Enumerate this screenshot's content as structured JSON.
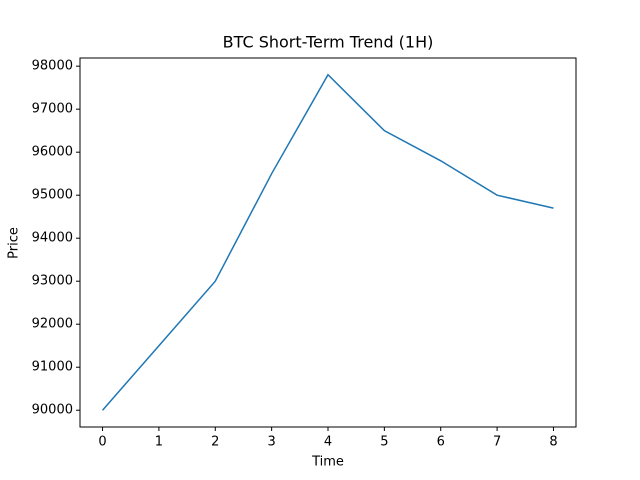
{
  "chart_data": {
    "type": "line",
    "title": "BTC Short-Term Trend (1H)",
    "x_label": "Time",
    "y_label": "Price",
    "x": [
      0,
      1,
      2,
      3,
      4,
      5,
      6,
      7,
      8
    ],
    "series": [
      {
        "color": "#1f77b4",
        "values": [
          90000,
          91500,
          93000,
          95500,
          97800,
          96500,
          95800,
          95000,
          94700
        ]
      }
    ],
    "xlim": [
      -0.4,
      8.4
    ],
    "xticks": [
      0,
      1,
      2,
      3,
      4,
      5,
      6,
      7,
      8
    ],
    "ylim": [
      89610,
      98190
    ],
    "yticks": [
      90000,
      91000,
      92000,
      93000,
      94000,
      95000,
      96000,
      97000,
      98000
    ],
    "grid": false
  }
}
